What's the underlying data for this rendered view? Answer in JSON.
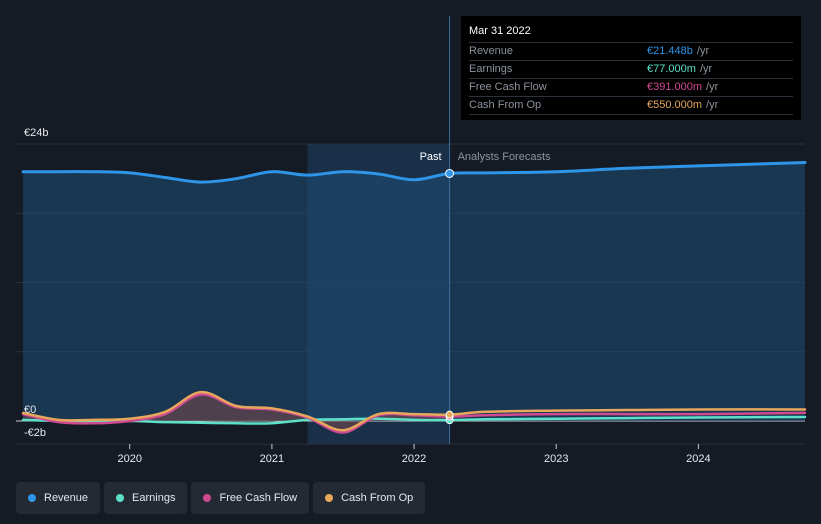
{
  "chart_data": {
    "type": "line",
    "y_labels": {
      "top": "€24b",
      "zero": "€0",
      "bottom": "-€2b"
    },
    "ylim": [
      -2,
      24
    ],
    "xlim": [
      2019.2,
      2024.75
    ],
    "x_ticks": [
      "2020",
      "2021",
      "2022",
      "2023",
      "2024"
    ],
    "past_label": "Past",
    "forecast_label": "Analysts Forecasts",
    "past_range": [
      2021.25,
      2022.25
    ],
    "divider_x": 2022.25,
    "series": [
      {
        "name": "Revenue",
        "color": "#2e95e8",
        "x": [
          2019.25,
          2019.5,
          2019.75,
          2020.0,
          2020.25,
          2020.5,
          2020.75,
          2021.0,
          2021.25,
          2021.5,
          2021.75,
          2022.0,
          2022.25,
          2022.5,
          2023.0,
          2023.5,
          2024.0,
          2024.5,
          2024.75
        ],
        "y": [
          21.6,
          21.6,
          21.6,
          21.5,
          21.1,
          20.7,
          21.0,
          21.6,
          21.3,
          21.6,
          21.4,
          20.9,
          21.448,
          21.5,
          21.6,
          21.9,
          22.1,
          22.3,
          22.4
        ]
      },
      {
        "name": "Earnings",
        "color": "#5ce0c8",
        "x": [
          2019.25,
          2019.5,
          2019.75,
          2020.0,
          2020.25,
          2020.5,
          2020.75,
          2021.0,
          2021.25,
          2021.5,
          2021.75,
          2022.0,
          2022.25,
          2022.5,
          2023.0,
          2023.5,
          2024.0,
          2024.75
        ],
        "y": [
          0.1,
          0.0,
          -0.1,
          0.0,
          -0.1,
          -0.15,
          -0.2,
          -0.2,
          0.1,
          0.15,
          0.2,
          0.1,
          0.077,
          0.15,
          0.2,
          0.25,
          0.3,
          0.35
        ]
      },
      {
        "name": "Free Cash Flow",
        "color": "#d04a91",
        "x": [
          2019.25,
          2019.5,
          2019.75,
          2020.0,
          2020.25,
          2020.5,
          2020.75,
          2021.0,
          2021.25,
          2021.5,
          2021.75,
          2022.0,
          2022.25,
          2022.5,
          2023.0,
          2023.5,
          2024.0,
          2024.75
        ],
        "y": [
          0.6,
          -0.1,
          -0.2,
          0.0,
          0.6,
          2.3,
          1.2,
          1.0,
          0.3,
          -1.0,
          0.5,
          0.5,
          0.391,
          0.5,
          0.6,
          0.6,
          0.6,
          0.7
        ]
      },
      {
        "name": "Cash From Op",
        "color": "#e8a85c",
        "x": [
          2019.25,
          2019.5,
          2019.75,
          2020.0,
          2020.25,
          2020.5,
          2020.75,
          2021.0,
          2021.25,
          2021.5,
          2021.75,
          2022.0,
          2022.25,
          2022.5,
          2023.0,
          2023.5,
          2024.0,
          2024.75
        ],
        "y": [
          0.7,
          0.1,
          0.1,
          0.2,
          0.8,
          2.5,
          1.3,
          1.1,
          0.4,
          -0.8,
          0.6,
          0.6,
          0.55,
          0.8,
          0.9,
          0.95,
          1.0,
          1.0
        ]
      }
    ]
  },
  "tooltip": {
    "date": "Mar 31 2022",
    "rows": [
      {
        "label": "Revenue",
        "value": "€21.448b",
        "unit": "/yr",
        "color": "#2e95e8"
      },
      {
        "label": "Earnings",
        "value": "€77.000m",
        "unit": "/yr",
        "color": "#5ce0c8"
      },
      {
        "label": "Free Cash Flow",
        "value": "€391.000m",
        "unit": "/yr",
        "color": "#d04a91"
      },
      {
        "label": "Cash From Op",
        "value": "€550.000m",
        "unit": "/yr",
        "color": "#e8a85c"
      }
    ]
  },
  "legend": [
    {
      "label": "Revenue",
      "color": "#2e95e8"
    },
    {
      "label": "Earnings",
      "color": "#5ce0c8"
    },
    {
      "label": "Free Cash Flow",
      "color": "#d04a91"
    },
    {
      "label": "Cash From Op",
      "color": "#e8a85c"
    }
  ]
}
